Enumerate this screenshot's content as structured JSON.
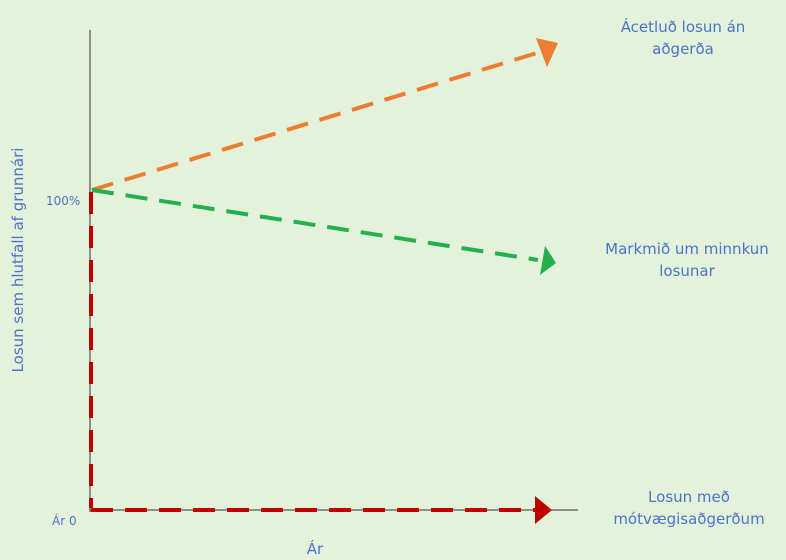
{
  "labels": {
    "no_action": "Ácetluð losun án aðgerða",
    "target": "Markmið um minnkun losunar",
    "offset": "Losun með mótvægisaðgerðum",
    "y_axis": "Losun sem hlutfall af grunnári",
    "x_axis": "Ár",
    "tick_100": "100%",
    "tick_origin": "Ár 0"
  },
  "colors": {
    "no_action": "#ed7d31",
    "target": "#22b14c",
    "offset": "#c00000",
    "axis": "#333333",
    "text": "#4a74c9",
    "background": "#e4f2dc"
  }
}
